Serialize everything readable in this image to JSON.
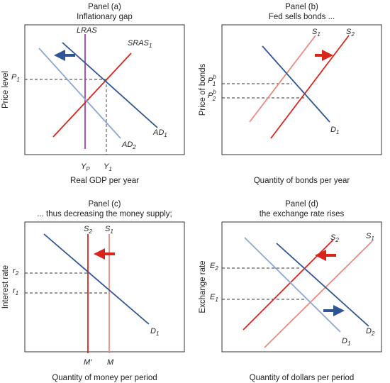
{
  "panels": [
    {
      "heading": "Panel (a)",
      "subtitle": "Inflationary gap",
      "x_axis_label": "Real GDP per year",
      "y_axis_label": "Price level",
      "labels": [
        {
          "text": "LRAS"
        },
        {
          "text": "SRAS",
          "sub": "1"
        },
        {
          "text": "AD",
          "sub": "1"
        },
        {
          "text": "AD",
          "sub": "2"
        },
        {
          "text": "P",
          "sub": "1"
        },
        {
          "text": "Y",
          "sub": "P"
        },
        {
          "text": "Y",
          "sub": "1"
        }
      ]
    },
    {
      "heading": "Panel (b)",
      "subtitle": "Fed sells bonds ...",
      "x_axis_label": "Quantity of bonds per year",
      "y_axis_label": "Price of bonds",
      "labels": [
        {
          "text": "S",
          "sub": "1"
        },
        {
          "text": "S",
          "sub": "2"
        },
        {
          "text": "D",
          "sub": "1"
        },
        {
          "text": "P",
          "sup": "b",
          "sub": "1"
        },
        {
          "text": "P",
          "sup": "b",
          "sub": "2"
        }
      ]
    },
    {
      "heading": "Panel (c)",
      "subtitle": "... thus decreasing the money supply;",
      "x_axis_label": "Quantity of money per period",
      "y_axis_label": "Interest rate",
      "labels": [
        {
          "text": "S",
          "sub": "2"
        },
        {
          "text": "S",
          "sub": "1"
        },
        {
          "text": "D",
          "sub": "1"
        },
        {
          "text": "r",
          "sub": "2"
        },
        {
          "text": "r",
          "sub": "1"
        },
        {
          "text": "M′"
        },
        {
          "text": "M"
        }
      ]
    },
    {
      "heading": "Panel (d)",
      "subtitle": "the exchange rate rises",
      "x_axis_label": "Quantity of dollars per period",
      "y_axis_label": "Exchange rate",
      "labels": [
        {
          "text": "S",
          "sub": "2"
        },
        {
          "text": "S",
          "sub": "1"
        },
        {
          "text": "D",
          "sub": "1"
        },
        {
          "text": "D",
          "sub": "2"
        },
        {
          "text": "E",
          "sub": "2"
        },
        {
          "text": "E",
          "sub": "1"
        }
      ]
    }
  ]
}
